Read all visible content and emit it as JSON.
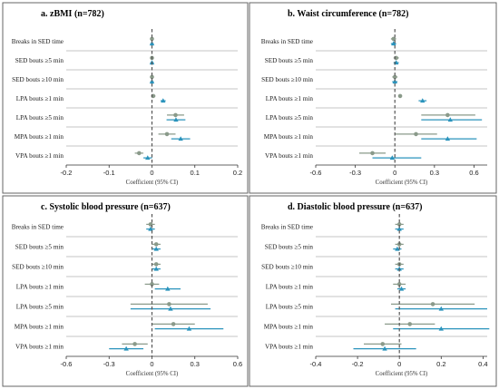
{
  "colors": {
    "grey": "#8a9a8a",
    "blue": "#2a93bc",
    "divider": "#b0b0b0",
    "zero": "#555555",
    "frame": "#666666"
  },
  "chart_data": [
    {
      "type": "forest",
      "title": "a. zBMI (n=782)",
      "xlabel": "Coefficient (95% CI)",
      "xlim": [
        -0.2,
        0.2
      ],
      "ticks": [
        -0.2,
        -0.1,
        0,
        0.1,
        0.2
      ],
      "tick_labels": [
        "-0.2",
        "-0.1",
        "0",
        "0.1",
        "0.2"
      ],
      "categories": [
        "Breaks in SED time",
        "SED bouts ≥5 min",
        "SED bouts ≥10 min",
        "LPA bouts ≥1 min",
        "LPA bouts ≥5 min",
        "MPA bouts ≥1 min",
        "VPA bouts ≥1 min"
      ],
      "series": [
        {
          "color": "grey",
          "marker": "circle",
          "estimates": [
            0.0,
            0.0,
            0.0,
            0.003,
            0.055,
            0.035,
            -0.03
          ],
          "lower": [
            -0.004,
            -0.004,
            -0.004,
            -0.002,
            0.035,
            0.015,
            -0.04
          ],
          "upper": [
            0.004,
            0.004,
            0.004,
            0.008,
            0.075,
            0.055,
            -0.02
          ]
        },
        {
          "color": "blue",
          "marker": "triangle",
          "estimates": [
            0.0,
            0.0,
            0.0,
            0.026,
            0.056,
            0.067,
            -0.01
          ],
          "lower": [
            -0.004,
            -0.004,
            -0.004,
            0.02,
            0.034,
            0.045,
            -0.02
          ],
          "upper": [
            0.004,
            0.004,
            0.004,
            0.032,
            0.078,
            0.089,
            0.0
          ]
        }
      ]
    },
    {
      "type": "forest",
      "title": "b. Waist circumference (n=782)",
      "xlabel": "Coefficient (95% CI)",
      "xlim": [
        -0.6,
        0.7
      ],
      "ticks": [
        -0.6,
        -0.3,
        0,
        0.3,
        0.6
      ],
      "tick_labels": [
        "-0.6",
        "-0.3",
        "0",
        "0.3",
        "0.6"
      ],
      "categories": [
        "Breaks in SED time",
        "SED bouts ≥5 min",
        "SED bouts ≥10 min",
        "LPA bouts ≥1 min",
        "LPA bouts ≥5 min",
        "MPA bouts ≥1 min",
        "VPA bouts ≥1 min"
      ],
      "series": [
        {
          "color": "grey",
          "marker": "circle",
          "estimates": [
            -0.01,
            0.01,
            0.0,
            0.04,
            0.4,
            0.16,
            -0.17
          ],
          "lower": [
            -0.03,
            -0.01,
            -0.02,
            0.03,
            0.2,
            0.0,
            -0.27
          ],
          "upper": [
            0.01,
            0.03,
            0.02,
            0.05,
            0.61,
            0.32,
            -0.07
          ]
        },
        {
          "color": "blue",
          "marker": "triangle",
          "estimates": [
            -0.01,
            0.01,
            0.0,
            0.21,
            0.42,
            0.4,
            -0.02
          ],
          "lower": [
            -0.03,
            -0.01,
            -0.02,
            0.18,
            0.2,
            0.2,
            -0.17
          ],
          "upper": [
            0.01,
            0.03,
            0.02,
            0.24,
            0.66,
            0.62,
            0.2
          ]
        }
      ]
    },
    {
      "type": "forest",
      "title": "c. Systolic blood pressure (n=637)",
      "xlabel": "Coefficient (95% CI)",
      "xlim": [
        -0.6,
        0.6
      ],
      "ticks": [
        -0.6,
        -0.3,
        0,
        0.3,
        0.6
      ],
      "tick_labels": [
        "-0.6",
        "-0.3",
        "0",
        "0.3",
        "0.6"
      ],
      "categories": [
        "Breaks in SED time",
        "SED bouts ≥5 min",
        "SED bouts ≥10 min",
        "LPA bouts ≥1 min",
        "LPA bouts ≥5 min",
        "MPA bouts ≥1 min",
        "VPA bouts ≥1 min"
      ],
      "series": [
        {
          "color": "grey",
          "marker": "circle",
          "estimates": [
            -0.01,
            0.03,
            0.03,
            0.0,
            0.12,
            0.15,
            -0.12
          ],
          "lower": [
            -0.04,
            0.0,
            0.0,
            -0.05,
            -0.15,
            0.0,
            -0.21
          ],
          "upper": [
            0.02,
            0.06,
            0.06,
            0.05,
            0.39,
            0.3,
            -0.03
          ]
        },
        {
          "color": "blue",
          "marker": "triangle",
          "estimates": [
            -0.01,
            0.03,
            0.03,
            0.11,
            0.13,
            0.26,
            -0.18
          ],
          "lower": [
            -0.04,
            0.0,
            0.0,
            0.02,
            -0.15,
            0.02,
            -0.3
          ],
          "upper": [
            0.02,
            0.06,
            0.06,
            0.2,
            0.41,
            0.5,
            -0.06
          ]
        }
      ]
    },
    {
      "type": "forest",
      "title": "d. Diastolic blood pressure (n=637)",
      "xlabel": "Coefficient (95% CI)",
      "xlim": [
        -0.4,
        0.42
      ],
      "ticks": [
        -0.4,
        -0.2,
        0,
        0.2,
        0.4
      ],
      "tick_labels": [
        "-0.4",
        "-0.2",
        "0",
        "0.2",
        "0.4"
      ],
      "categories": [
        "Breaks in SED time",
        "SED bouts ≥5 min",
        "SED bouts ≥10 min",
        "LPA bouts ≥1 min",
        "LPA bouts ≥5 min",
        "MPA bouts ≥1 min",
        "VPA bouts ≥1 min"
      ],
      "series": [
        {
          "color": "grey",
          "marker": "circle",
          "estimates": [
            0.0,
            0.0,
            0.0,
            0.0,
            0.16,
            0.05,
            -0.08
          ],
          "lower": [
            -0.02,
            -0.02,
            -0.02,
            -0.03,
            -0.04,
            -0.07,
            -0.17
          ],
          "upper": [
            0.02,
            0.02,
            0.02,
            0.03,
            0.36,
            0.17,
            0.01
          ]
        },
        {
          "color": "blue",
          "marker": "triangle",
          "estimates": [
            0.0,
            -0.01,
            0.0,
            0.01,
            0.2,
            0.2,
            -0.07
          ],
          "lower": [
            -0.02,
            -0.03,
            -0.02,
            -0.01,
            -0.02,
            -0.03,
            -0.22
          ],
          "upper": [
            0.02,
            0.01,
            0.02,
            0.03,
            0.42,
            0.43,
            0.08
          ]
        }
      ]
    }
  ]
}
